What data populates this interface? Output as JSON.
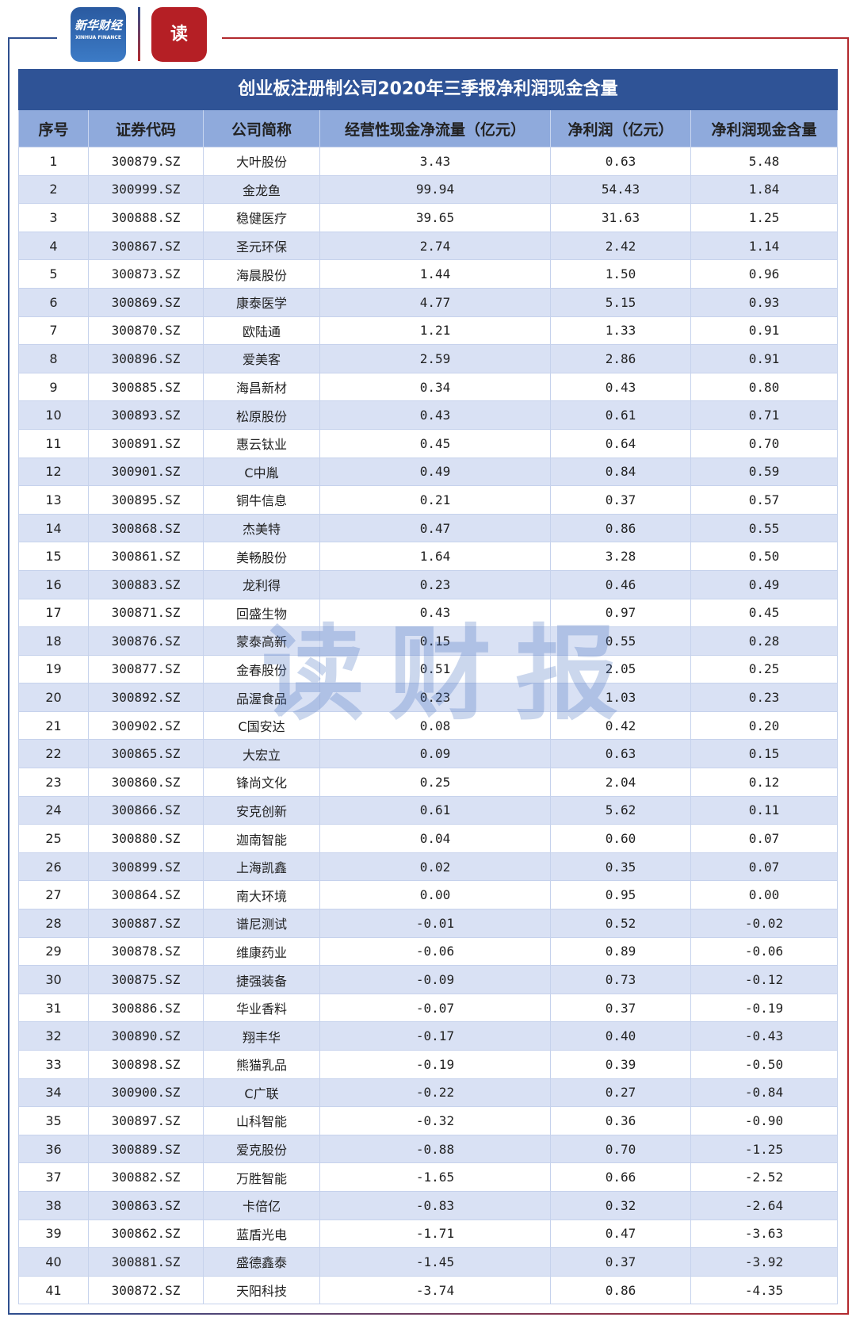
{
  "logos": {
    "xinhua": "新华财经",
    "xinhua_sub": "XINHUA FINANCE",
    "dubao": "读财报"
  },
  "title": "创业板注册制公司2020年三季报净利润现金含量",
  "headers": [
    "序号",
    "证券代码",
    "公司简称",
    "经营性现金净流量（亿元）",
    "净利润（亿元）",
    "净利润现金含量"
  ],
  "watermark": "读财报",
  "rows": [
    [
      "1",
      "300879.SZ",
      "大叶股份",
      "3.43",
      "0.63",
      "5.48"
    ],
    [
      "2",
      "300999.SZ",
      "金龙鱼",
      "99.94",
      "54.43",
      "1.84"
    ],
    [
      "3",
      "300888.SZ",
      "稳健医疗",
      "39.65",
      "31.63",
      "1.25"
    ],
    [
      "4",
      "300867.SZ",
      "圣元环保",
      "2.74",
      "2.42",
      "1.14"
    ],
    [
      "5",
      "300873.SZ",
      "海晨股份",
      "1.44",
      "1.50",
      "0.96"
    ],
    [
      "6",
      "300869.SZ",
      "康泰医学",
      "4.77",
      "5.15",
      "0.93"
    ],
    [
      "7",
      "300870.SZ",
      "欧陆通",
      "1.21",
      "1.33",
      "0.91"
    ],
    [
      "8",
      "300896.SZ",
      "爱美客",
      "2.59",
      "2.86",
      "0.91"
    ],
    [
      "9",
      "300885.SZ",
      "海昌新材",
      "0.34",
      "0.43",
      "0.80"
    ],
    [
      "10",
      "300893.SZ",
      "松原股份",
      "0.43",
      "0.61",
      "0.71"
    ],
    [
      "11",
      "300891.SZ",
      "惠云钛业",
      "0.45",
      "0.64",
      "0.70"
    ],
    [
      "12",
      "300901.SZ",
      "C中胤",
      "0.49",
      "0.84",
      "0.59"
    ],
    [
      "13",
      "300895.SZ",
      "铜牛信息",
      "0.21",
      "0.37",
      "0.57"
    ],
    [
      "14",
      "300868.SZ",
      "杰美特",
      "0.47",
      "0.86",
      "0.55"
    ],
    [
      "15",
      "300861.SZ",
      "美畅股份",
      "1.64",
      "3.28",
      "0.50"
    ],
    [
      "16",
      "300883.SZ",
      "龙利得",
      "0.23",
      "0.46",
      "0.49"
    ],
    [
      "17",
      "300871.SZ",
      "回盛生物",
      "0.43",
      "0.97",
      "0.45"
    ],
    [
      "18",
      "300876.SZ",
      "蒙泰高新",
      "0.15",
      "0.55",
      "0.28"
    ],
    [
      "19",
      "300877.SZ",
      "金春股份",
      "0.51",
      "2.05",
      "0.25"
    ],
    [
      "20",
      "300892.SZ",
      "品渥食品",
      "0.23",
      "1.03",
      "0.23"
    ],
    [
      "21",
      "300902.SZ",
      "C国安达",
      "0.08",
      "0.42",
      "0.20"
    ],
    [
      "22",
      "300865.SZ",
      "大宏立",
      "0.09",
      "0.63",
      "0.15"
    ],
    [
      "23",
      "300860.SZ",
      "锋尚文化",
      "0.25",
      "2.04",
      "0.12"
    ],
    [
      "24",
      "300866.SZ",
      "安克创新",
      "0.61",
      "5.62",
      "0.11"
    ],
    [
      "25",
      "300880.SZ",
      "迦南智能",
      "0.04",
      "0.60",
      "0.07"
    ],
    [
      "26",
      "300899.SZ",
      "上海凯鑫",
      "0.02",
      "0.35",
      "0.07"
    ],
    [
      "27",
      "300864.SZ",
      "南大环境",
      "0.00",
      "0.95",
      "0.00"
    ],
    [
      "28",
      "300887.SZ",
      "谱尼测试",
      "-0.01",
      "0.52",
      "-0.02"
    ],
    [
      "29",
      "300878.SZ",
      "维康药业",
      "-0.06",
      "0.89",
      "-0.06"
    ],
    [
      "30",
      "300875.SZ",
      "捷强装备",
      "-0.09",
      "0.73",
      "-0.12"
    ],
    [
      "31",
      "300886.SZ",
      "华业香料",
      "-0.07",
      "0.37",
      "-0.19"
    ],
    [
      "32",
      "300890.SZ",
      "翔丰华",
      "-0.17",
      "0.40",
      "-0.43"
    ],
    [
      "33",
      "300898.SZ",
      "熊猫乳品",
      "-0.19",
      "0.39",
      "-0.50"
    ],
    [
      "34",
      "300900.SZ",
      "C广联",
      "-0.22",
      "0.27",
      "-0.84"
    ],
    [
      "35",
      "300897.SZ",
      "山科智能",
      "-0.32",
      "0.36",
      "-0.90"
    ],
    [
      "36",
      "300889.SZ",
      "爱克股份",
      "-0.88",
      "0.70",
      "-1.25"
    ],
    [
      "37",
      "300882.SZ",
      "万胜智能",
      "-1.65",
      "0.66",
      "-2.52"
    ],
    [
      "38",
      "300863.SZ",
      "卡倍亿",
      "-0.83",
      "0.32",
      "-2.64"
    ],
    [
      "39",
      "300862.SZ",
      "蓝盾光电",
      "-1.71",
      "0.47",
      "-3.63"
    ],
    [
      "40",
      "300881.SZ",
      "盛德鑫泰",
      "-1.45",
      "0.37",
      "-3.92"
    ],
    [
      "41",
      "300872.SZ",
      "天阳科技",
      "-3.74",
      "0.86",
      "-4.35"
    ]
  ]
}
